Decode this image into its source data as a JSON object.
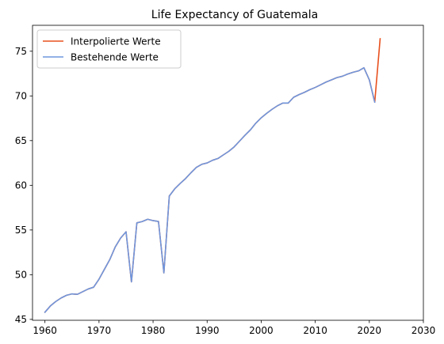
{
  "chart_data": {
    "type": "line",
    "title": "Life Expectancy of Guatemala",
    "xlabel": "",
    "ylabel": "",
    "xlim": [
      1957.7,
      2030
    ],
    "ylim": [
      44.9,
      77.9
    ],
    "xticks": [
      1960,
      1970,
      1980,
      1990,
      2000,
      2010,
      2020,
      2030
    ],
    "yticks": [
      45,
      50,
      55,
      60,
      65,
      70,
      75
    ],
    "grid": false,
    "legend_position": "top-left",
    "series": [
      {
        "name": "Interpolierte Werte",
        "color": "#e8501e",
        "x": [
          1960,
          1961,
          1962,
          1963,
          1964,
          1965,
          1966,
          1967,
          1968,
          1969,
          1970,
          1971,
          1972,
          1973,
          1974,
          1975,
          1976,
          1977,
          1978,
          1979,
          1980,
          1981,
          1982,
          1983,
          1984,
          1985,
          1986,
          1987,
          1988,
          1989,
          1990,
          1991,
          1992,
          1993,
          1994,
          1995,
          1996,
          1997,
          1998,
          1999,
          2000,
          2001,
          2002,
          2003,
          2004,
          2005,
          2006,
          2007,
          2008,
          2009,
          2010,
          2011,
          2012,
          2013,
          2014,
          2015,
          2016,
          2017,
          2018,
          2019,
          2020,
          2021,
          2022
        ],
        "values": [
          45.8,
          46.5,
          47.0,
          47.4,
          47.7,
          47.85,
          47.8,
          48.1,
          48.4,
          48.6,
          49.5,
          50.6,
          51.7,
          53.1,
          54.1,
          54.8,
          49.2,
          55.8,
          55.95,
          56.2,
          56.05,
          55.95,
          50.2,
          58.8,
          59.6,
          60.2,
          60.75,
          61.4,
          62.0,
          62.35,
          62.5,
          62.8,
          63.0,
          63.4,
          63.8,
          64.3,
          64.95,
          65.6,
          66.2,
          66.95,
          67.55,
          68.05,
          68.5,
          68.9,
          69.2,
          69.2,
          69.85,
          70.15,
          70.4,
          70.7,
          70.95,
          71.25,
          71.55,
          71.8,
          72.05,
          72.2,
          72.45,
          72.65,
          72.8,
          73.15,
          71.8,
          69.3,
          76.4
        ]
      },
      {
        "name": "Bestehende Werte",
        "color": "#6f97de",
        "x": [
          1960,
          1961,
          1962,
          1963,
          1964,
          1965,
          1966,
          1967,
          1968,
          1969,
          1970,
          1971,
          1972,
          1973,
          1974,
          1975,
          1976,
          1977,
          1978,
          1979,
          1980,
          1981,
          1982,
          1983,
          1984,
          1985,
          1986,
          1987,
          1988,
          1989,
          1990,
          1991,
          1992,
          1993,
          1994,
          1995,
          1996,
          1997,
          1998,
          1999,
          2000,
          2001,
          2002,
          2003,
          2004,
          2005,
          2006,
          2007,
          2008,
          2009,
          2010,
          2011,
          2012,
          2013,
          2014,
          2015,
          2016,
          2017,
          2018,
          2019,
          2020,
          2021
        ],
        "values": [
          45.8,
          46.5,
          47.0,
          47.4,
          47.7,
          47.85,
          47.8,
          48.1,
          48.4,
          48.6,
          49.5,
          50.6,
          51.7,
          53.1,
          54.1,
          54.8,
          49.2,
          55.8,
          55.95,
          56.2,
          56.05,
          55.95,
          50.2,
          58.8,
          59.6,
          60.2,
          60.75,
          61.4,
          62.0,
          62.35,
          62.5,
          62.8,
          63.0,
          63.4,
          63.8,
          64.3,
          64.95,
          65.6,
          66.2,
          66.95,
          67.55,
          68.05,
          68.5,
          68.9,
          69.2,
          69.2,
          69.85,
          70.15,
          70.4,
          70.7,
          70.95,
          71.25,
          71.55,
          71.8,
          72.05,
          72.2,
          72.45,
          72.65,
          72.8,
          73.15,
          71.8,
          69.3
        ]
      }
    ]
  }
}
